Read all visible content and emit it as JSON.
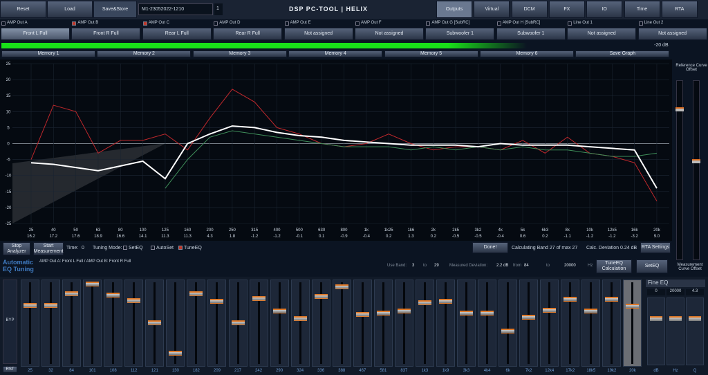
{
  "toolbar": {
    "buttons": [
      "Reset",
      "Load",
      "Save&Store"
    ],
    "file": "M1-23052022-1210",
    "slot": "1",
    "title": "DSP PC-TOOL | HELIX",
    "tabs": [
      "Outputs",
      "Virtual",
      "DCM",
      "FX",
      "IO",
      "Time",
      "RTA"
    ]
  },
  "channels": [
    {
      "label": "AMP Out A",
      "name": "Front L Full",
      "marked": false
    },
    {
      "label": "AMP Out B",
      "name": "Front R Full",
      "marked": true
    },
    {
      "label": "AMP Out C",
      "name": "Rear L Full",
      "marked": true
    },
    {
      "label": "AMP Out D",
      "name": "Rear R Full",
      "marked": false
    },
    {
      "label": "AMP Out E",
      "name": "Not assigned",
      "marked": false
    },
    {
      "label": "AMP Out F",
      "name": "Not assigned",
      "marked": false
    },
    {
      "label": "AMP Out G [SubRC]",
      "name": "Subwoofer 1",
      "marked": false
    },
    {
      "label": "AMP Out H [SubRC]",
      "name": "Subwoofer 1",
      "marked": false
    },
    {
      "label": "Line Out 1",
      "name": "Not assigned",
      "marked": false
    },
    {
      "label": "Line Out 2",
      "name": "Not assigned",
      "marked": false
    }
  ],
  "level_meter": {
    "label": "-20 dB"
  },
  "memory_tabs": [
    "Memory 1",
    "Memory 2",
    "Memory 3",
    "Memory 4",
    "Memory 5",
    "Memory 6",
    "Save Graph"
  ],
  "chart_data": {
    "type": "line",
    "categories": [
      "25",
      "40",
      "50",
      "63",
      "80",
      "100",
      "125",
      "160",
      "200",
      "250",
      "315",
      "400",
      "500",
      "630",
      "800",
      "1k",
      "1k25",
      "1k6",
      "2k",
      "2k5",
      "3k2",
      "4k",
      "5k",
      "6k3",
      "8k",
      "10k",
      "12k5",
      "16k",
      "20k"
    ],
    "band_deviations": [
      "16.2",
      "17.2",
      "17.6",
      "18.9",
      "16.6",
      "14.1",
      "11.3",
      "11.3",
      "4.3",
      "1.8",
      "-1.2",
      "-1.2",
      "-0.1",
      "0.1",
      "-0.9",
      "-0.4",
      "0.2",
      "1.3",
      "0.2",
      "-0.5",
      "-0.5",
      "-0.4",
      "0.6",
      "0.2",
      "-1.1",
      "-1.2",
      "-1.2",
      "-3.2",
      "9.0"
    ],
    "series": [
      {
        "color": "#c0282c",
        "values": [
          -5,
          12,
          10,
          -3,
          1,
          1,
          3,
          -2,
          8,
          17,
          13,
          5,
          3,
          0,
          -1,
          0,
          3,
          0,
          -2,
          -1,
          -1,
          -2,
          1,
          -3,
          2,
          -3,
          -4,
          -6,
          -18
        ]
      },
      {
        "color": "#3f8f5a",
        "values": [
          null,
          null,
          null,
          null,
          null,
          null,
          -14,
          -5,
          2,
          4,
          3,
          2,
          1,
          0,
          -1,
          -1,
          -1,
          -2,
          -1,
          -2,
          -1,
          -2,
          -1,
          -2,
          -2,
          -3,
          -4,
          -4,
          -3
        ]
      },
      {
        "color": "#ffffff",
        "values": [
          -6,
          -6.5,
          -7.5,
          -8.5,
          -7,
          -5.5,
          -11,
          0,
          3,
          5.5,
          5,
          3.5,
          2.5,
          2,
          1,
          0.5,
          0,
          -0.5,
          -0.5,
          -0.5,
          -1,
          0,
          -0.5,
          -0.5,
          -0.5,
          -1,
          -1.5,
          -2,
          -14
        ]
      }
    ],
    "ylim": [
      -25,
      25
    ],
    "yticks": [
      25,
      20,
      15,
      10,
      5,
      0,
      -5,
      -10,
      -15,
      -20,
      -25
    ],
    "grid": true
  },
  "side_labels": {
    "reference": "Reference Curve Offset",
    "measurement": "Measurement Curve Offset"
  },
  "controls": {
    "stop": "Stop Analyzer",
    "start": "Start Measurement",
    "time_label": "Time:",
    "time": "0",
    "mode_label": "Tuning Mode:",
    "modes": [
      {
        "label": "SetEQ",
        "checked": false
      },
      {
        "label": "AutoSet",
        "checked": false
      },
      {
        "label": "TuneEQ",
        "checked": true
      }
    ],
    "done": "Done!",
    "calculating": "Calculating Band  27  of max  27",
    "calc_deviation": "Calc. Deviation  0.24 dB",
    "rta": "RTA Settings"
  },
  "auto_eq": {
    "title": "Automatic EQ Tuning",
    "outputs": "AMP Out A: Front L Full  /  AMP Out B: Front R Full",
    "use_band": "Use Band:",
    "band_from": "3",
    "to": "to",
    "band_to": "29",
    "deviation_label": "Measured  Deviation:",
    "deviation": "2.2 dB",
    "from": "from",
    "hz_from": "84",
    "hz_to": "20000",
    "hz": "Hz",
    "tune": "TuneEQ Calculation",
    "set": "SetEQ"
  },
  "eq": {
    "bypass": "BYP",
    "reset": "RST",
    "ylim": [
      -12,
      12
    ],
    "bands": [
      "25",
      "32",
      "84",
      "101",
      "108",
      "112",
      "121",
      "130",
      "182",
      "209",
      "217",
      "242",
      "290",
      "324",
      "336",
      "388",
      "467",
      "581",
      "837",
      "1k3",
      "1k9",
      "3k3",
      "4k4",
      "6k",
      "7k2",
      "12k4",
      "17k2",
      "18k5",
      "19k2",
      "20k"
    ],
    "gains": [
      5.2,
      5.2,
      8.6,
      11.6,
      8.2,
      6.6,
      0,
      -9,
      8.6,
      6.4,
      0,
      7.2,
      3.6,
      1.2,
      7.8,
      10.8,
      2.4,
      3,
      3.6,
      6,
      6.4,
      3,
      3,
      -2.4,
      1.6,
      3.8,
      7,
      3.6,
      7,
      5
    ]
  },
  "fine_eq": {
    "title": "Fine EQ",
    "values": [
      "0",
      "20000",
      "4.3"
    ],
    "units": [
      "dB",
      "Hz",
      "Q"
    ]
  }
}
